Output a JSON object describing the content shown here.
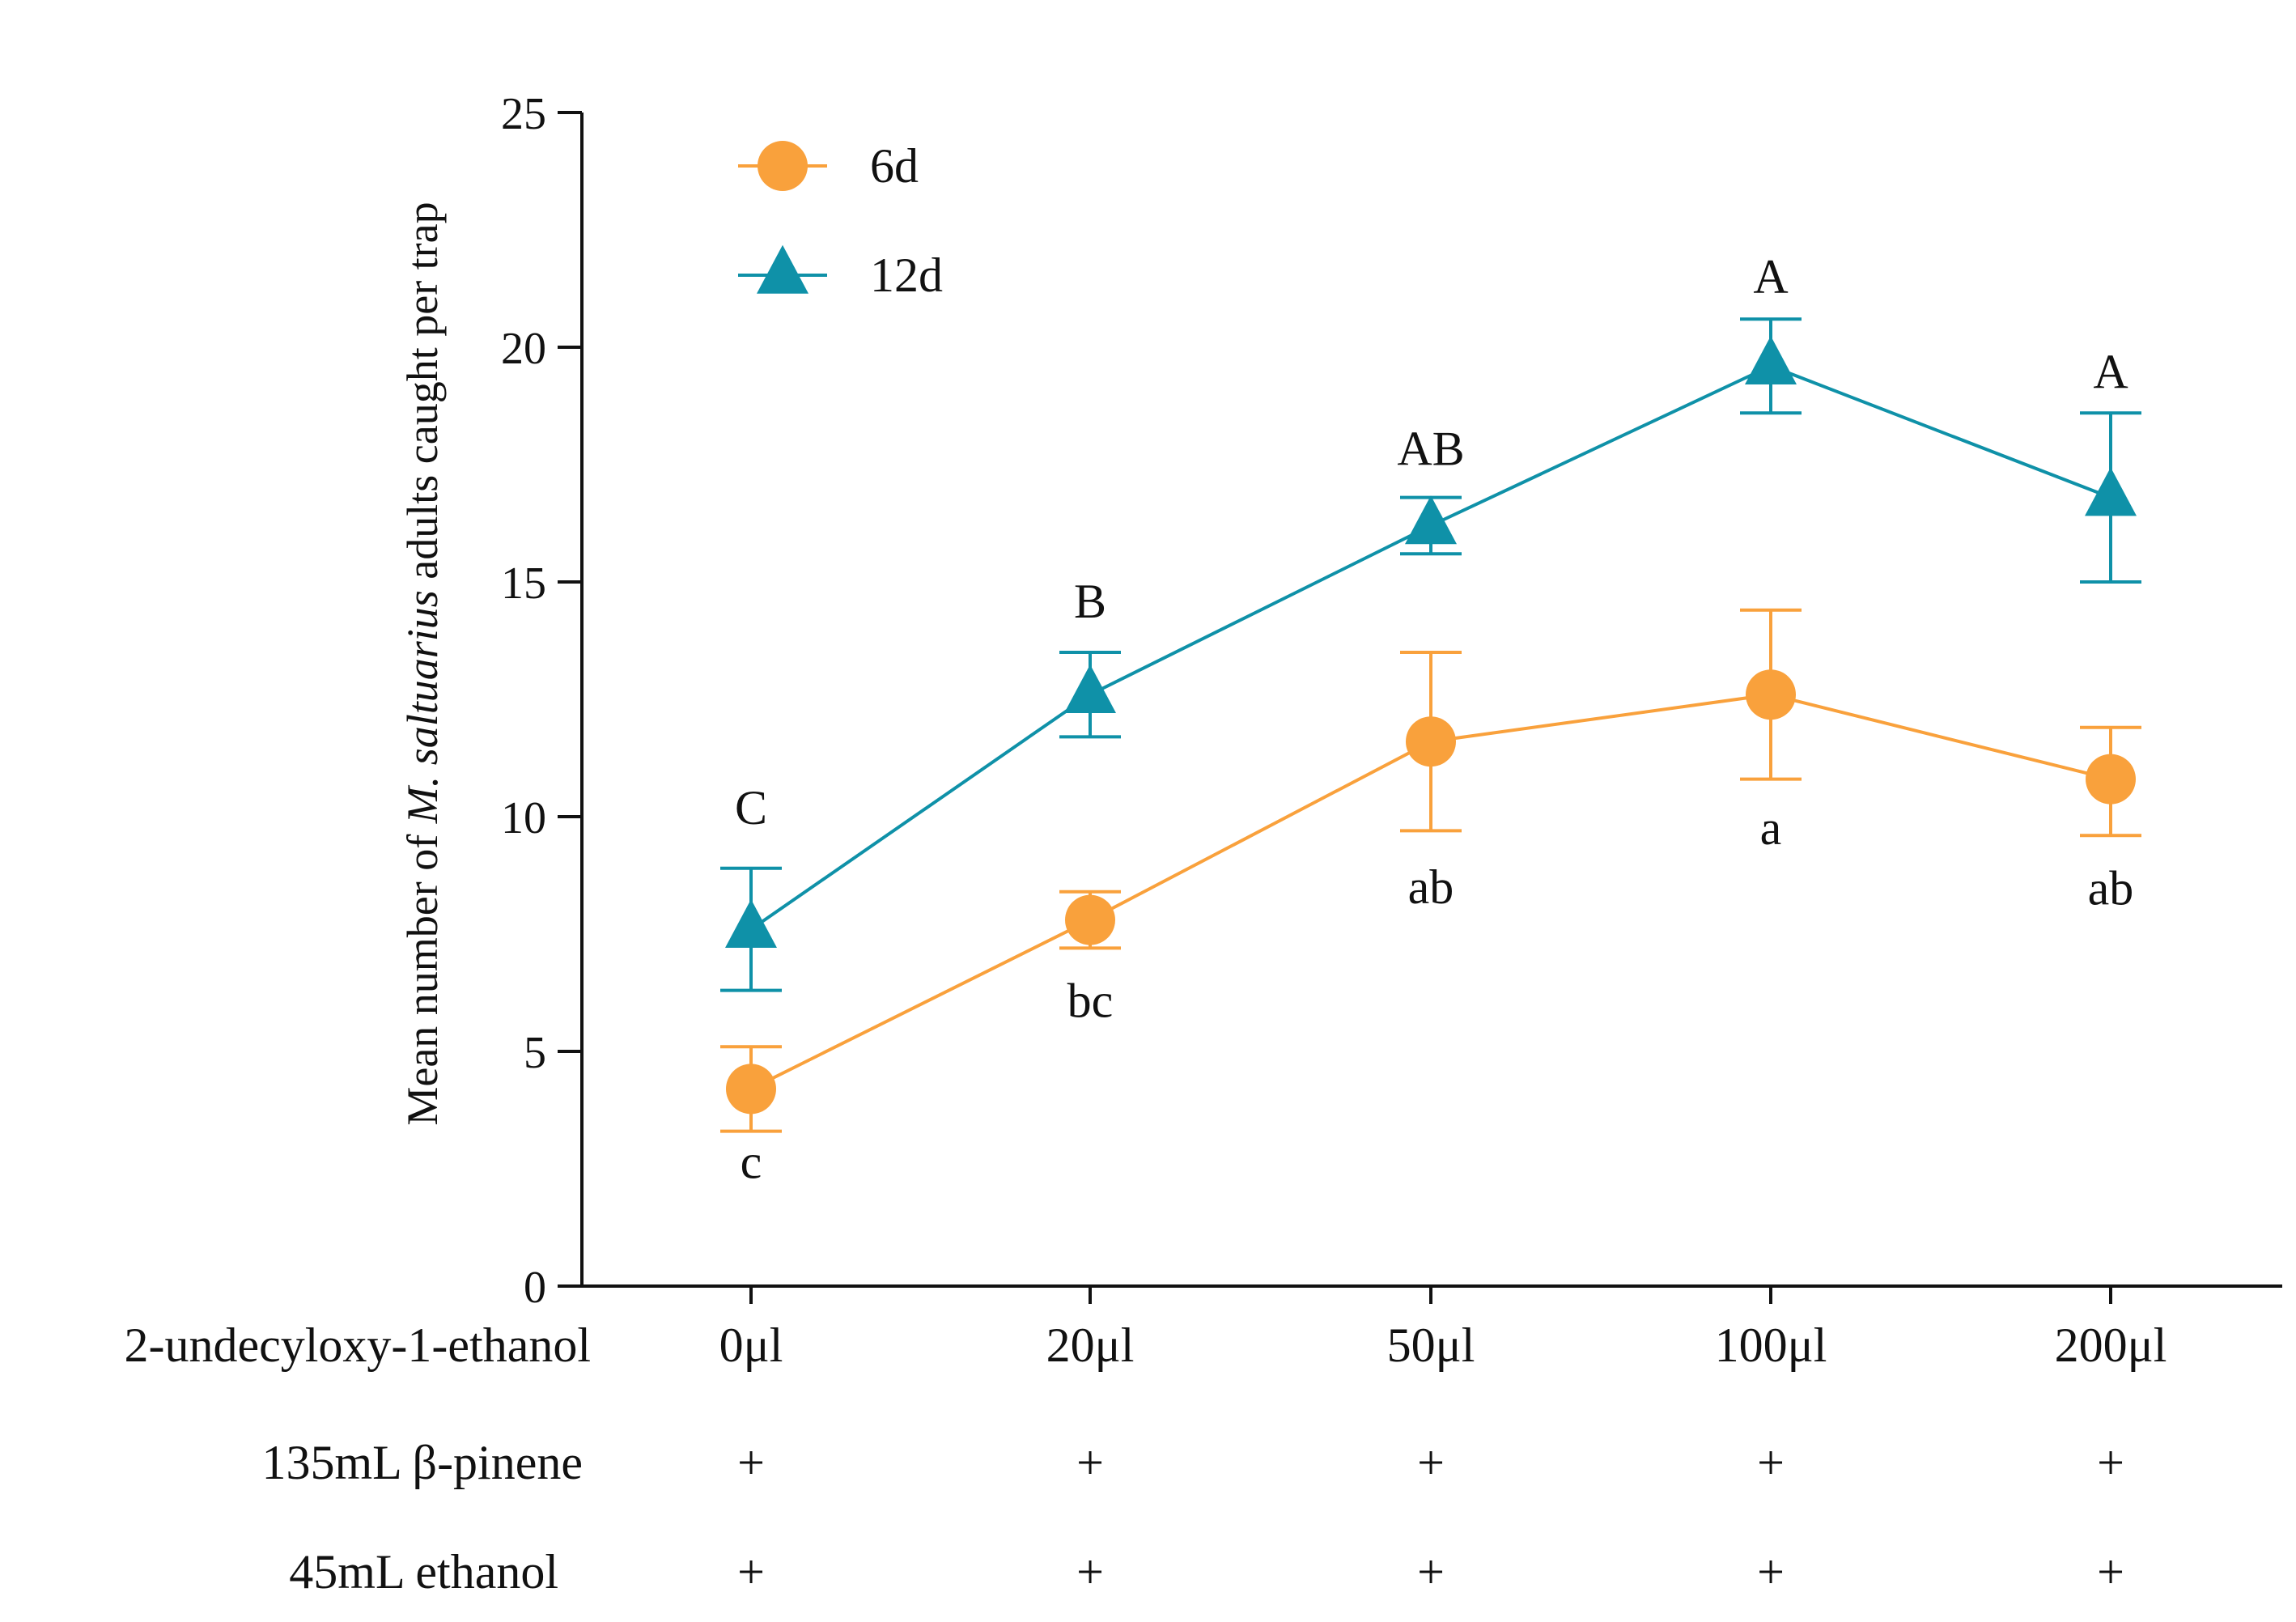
{
  "chart_data": {
    "type": "line",
    "categories": [
      "0μl",
      "20μl",
      "50μl",
      "100μl",
      "200μl"
    ],
    "ylabel_parts": [
      "Mean number of ",
      "M. saltuarius",
      " adults caught per trap"
    ],
    "ylim": [
      0,
      25
    ],
    "yticks": [
      0,
      5,
      10,
      15,
      20,
      25
    ],
    "grid": false,
    "legend_position": "top-left",
    "series": [
      {
        "name": "6d",
        "color": "#F9A13C",
        "marker": "circle",
        "values": [
          4.2,
          7.8,
          11.6,
          12.6,
          10.8
        ],
        "err_low": [
          3.3,
          7.2,
          9.7,
          10.8,
          9.6
        ],
        "err_high": [
          5.1,
          8.4,
          13.5,
          14.4,
          11.9
        ],
        "sig_labels": [
          "c",
          "bc",
          "ab",
          "a",
          "ab"
        ]
      },
      {
        "name": "12d",
        "color": "#0F91A8",
        "marker": "triangle",
        "values": [
          7.6,
          12.6,
          16.2,
          19.6,
          16.8
        ],
        "err_low": [
          6.3,
          11.7,
          15.6,
          18.6,
          15.0
        ],
        "err_high": [
          8.9,
          13.5,
          16.8,
          20.6,
          18.6
        ],
        "sig_labels": [
          "C",
          "B",
          "AB",
          "A",
          "A"
        ]
      }
    ],
    "treatment_rows": [
      {
        "label": "2-undecyloxy-1-ethanol",
        "values": [
          "0μl",
          "20μl",
          "50μl",
          "100μl",
          "200μl"
        ]
      },
      {
        "label": "135mL  β-pinene",
        "values": [
          "+",
          "+",
          "+",
          "+",
          "+"
        ]
      },
      {
        "label": "45mL  ethanol",
        "values": [
          "+",
          "+",
          "+",
          "+",
          "+"
        ]
      }
    ]
  }
}
